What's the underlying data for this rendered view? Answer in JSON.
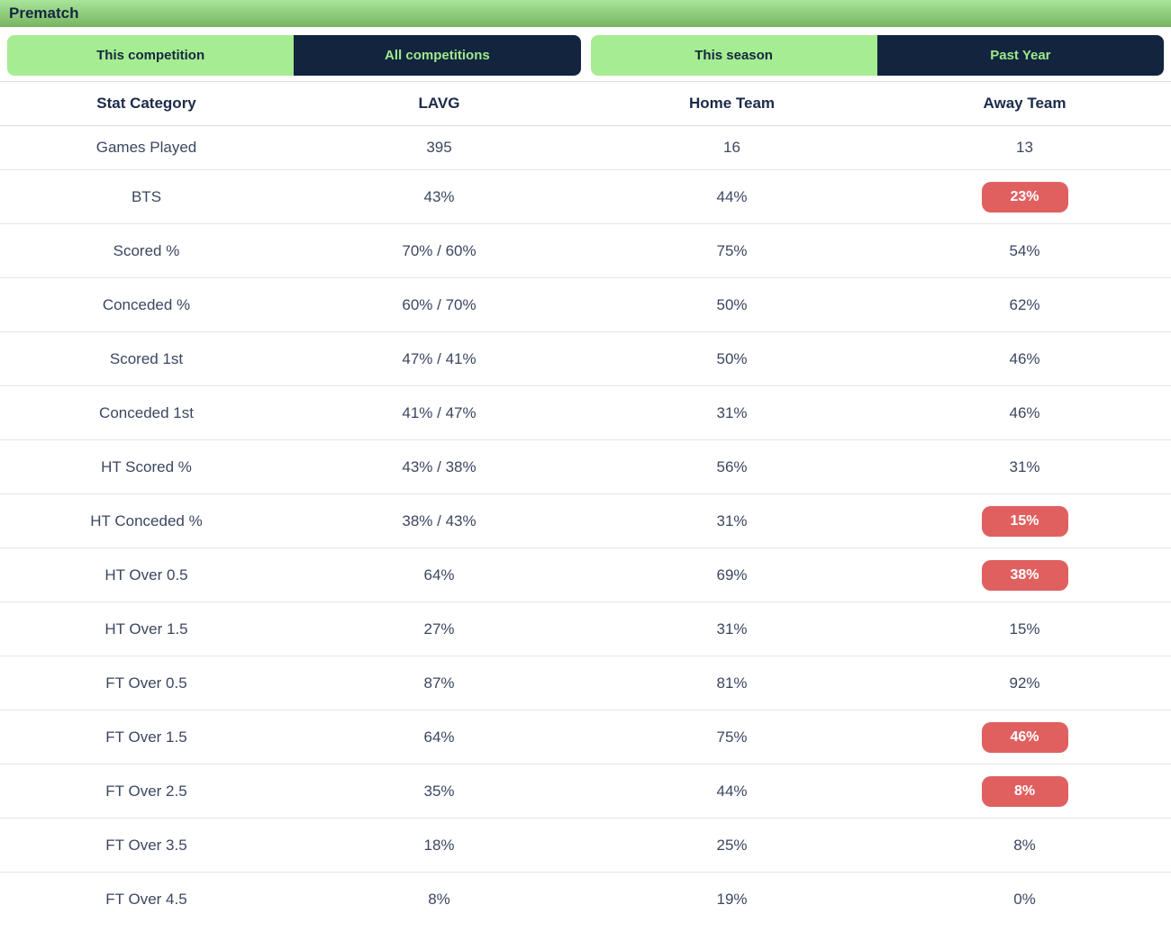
{
  "header": {
    "title": "Prematch"
  },
  "colors": {
    "accent_green": "#a6ec92",
    "navy": "#12243e",
    "badge_red": "#e06060",
    "bar_gradient_top": "#a9e49b",
    "bar_gradient_bottom": "#77b560"
  },
  "toggles": {
    "competition": {
      "options": [
        {
          "label": "This competition",
          "active": true
        },
        {
          "label": "All competitions",
          "active": false
        }
      ]
    },
    "season": {
      "options": [
        {
          "label": "This season",
          "active": true
        },
        {
          "label": "Past Year",
          "active": false
        }
      ]
    }
  },
  "table": {
    "columns": [
      "Stat Category",
      "LAVG",
      "Home Team",
      "Away Team"
    ],
    "rows": [
      {
        "category": "Games Played",
        "lavg": "395",
        "home": "16",
        "away": "13",
        "away_badge": false
      },
      {
        "category": "BTS",
        "lavg": "43%",
        "home": "44%",
        "away": "23%",
        "away_badge": true
      },
      {
        "category": "Scored %",
        "lavg": "70% / 60%",
        "home": "75%",
        "away": "54%",
        "away_badge": false
      },
      {
        "category": "Conceded %",
        "lavg": "60% / 70%",
        "home": "50%",
        "away": "62%",
        "away_badge": false
      },
      {
        "category": "Scored 1st",
        "lavg": "47% / 41%",
        "home": "50%",
        "away": "46%",
        "away_badge": false
      },
      {
        "category": "Conceded 1st",
        "lavg": "41% / 47%",
        "home": "31%",
        "away": "46%",
        "away_badge": false
      },
      {
        "category": "HT Scored %",
        "lavg": "43% / 38%",
        "home": "56%",
        "away": "31%",
        "away_badge": false
      },
      {
        "category": "HT Conceded %",
        "lavg": "38% / 43%",
        "home": "31%",
        "away": "15%",
        "away_badge": true
      },
      {
        "category": "HT Over 0.5",
        "lavg": "64%",
        "home": "69%",
        "away": "38%",
        "away_badge": true
      },
      {
        "category": "HT Over 1.5",
        "lavg": "27%",
        "home": "31%",
        "away": "15%",
        "away_badge": false
      },
      {
        "category": "FT Over 0.5",
        "lavg": "87%",
        "home": "81%",
        "away": "92%",
        "away_badge": false
      },
      {
        "category": "FT Over 1.5",
        "lavg": "64%",
        "home": "75%",
        "away": "46%",
        "away_badge": true
      },
      {
        "category": "FT Over 2.5",
        "lavg": "35%",
        "home": "44%",
        "away": "8%",
        "away_badge": true
      },
      {
        "category": "FT Over 3.5",
        "lavg": "18%",
        "home": "25%",
        "away": "8%",
        "away_badge": false
      },
      {
        "category": "FT Over 4.5",
        "lavg": "8%",
        "home": "19%",
        "away": "0%",
        "away_badge": false
      }
    ]
  }
}
